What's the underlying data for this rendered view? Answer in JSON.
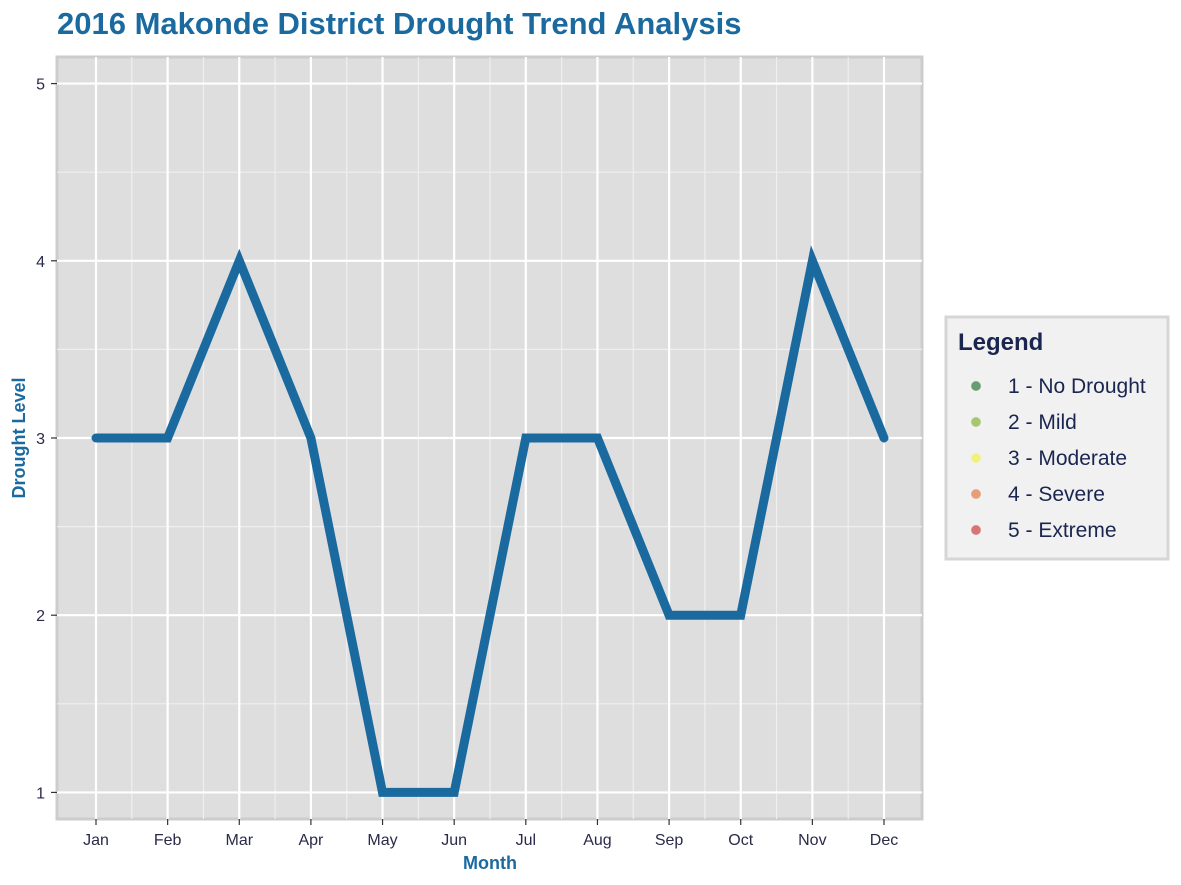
{
  "chart_data": {
    "type": "line",
    "title": "2016 Makonde District Drought Trend Analysis",
    "xlabel": "Month",
    "ylabel": "Drought Level",
    "categories": [
      "Jan",
      "Feb",
      "Mar",
      "Apr",
      "May",
      "Jun",
      "Jul",
      "Aug",
      "Sep",
      "Oct",
      "Nov",
      "Dec"
    ],
    "values": [
      3,
      3,
      4,
      3,
      1,
      1,
      3,
      3,
      2,
      2,
      4,
      3
    ],
    "ylim": [
      0.85,
      5.15
    ],
    "yticks": [
      1,
      2,
      3,
      4,
      5
    ],
    "grid": true,
    "line_color": "#1a6aa0",
    "legend": {
      "title": "Legend",
      "position": "right",
      "items": [
        {
          "label": "1 - No Drought",
          "color": "#4e8f5a"
        },
        {
          "label": "2 - Mild",
          "color": "#9ac05a"
        },
        {
          "label": "3 - Moderate",
          "color": "#f2f26a"
        },
        {
          "label": "4 - Severe",
          "color": "#e39064"
        },
        {
          "label": "5 - Extreme",
          "color": "#d2605f"
        }
      ]
    }
  }
}
